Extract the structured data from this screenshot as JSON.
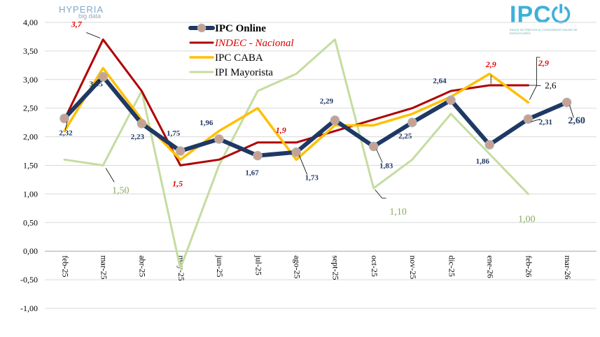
{
  "logos": {
    "left_name": "HYPERIA",
    "left_sub": "big data",
    "right_name": "IPC",
    "right_tagline": "ÍNDICE DE PRECIOS AL CONSUMIDOR ONLINE DE BUENOS AIRES"
  },
  "colors": {
    "ipc_online": "#1f3864",
    "ipc_online_marker": "#c9a08f",
    "indec": "#b00000",
    "ipc_caba": "#ffc000",
    "ipi": "#c5dca0",
    "grid": "#d9d9d9"
  },
  "chart_data": {
    "type": "line",
    "title": "",
    "xlabel": "",
    "ylabel": "",
    "ylim": [
      -1.0,
      4.0
    ],
    "yticks": [
      "4,00",
      "3,50",
      "3,00",
      "2,50",
      "2,00",
      "1,50",
      "1,00",
      "0,50",
      "0,00",
      "-0,50",
      "-1,00"
    ],
    "ytick_values": [
      4.0,
      3.5,
      3.0,
      2.5,
      2.0,
      1.5,
      1.0,
      0.5,
      0.0,
      -0.5,
      -1.0
    ],
    "categories": [
      "feb-25",
      "mar-25",
      "abr-25",
      "may-25",
      "jun-25",
      "jul-25",
      "ago-25",
      "sept-25",
      "oct-25",
      "nov-25",
      "dic-25",
      "ene-26",
      "feb-26",
      "mar-26"
    ],
    "legend": [
      "IPC Online",
      "INDEC - Nacional",
      "IPC CABA",
      "IPI Mayorista"
    ],
    "series": [
      {
        "name": "IPI Mayorista",
        "values": [
          1.6,
          1.5,
          2.8,
          -0.3,
          1.5,
          2.8,
          3.1,
          3.7,
          1.1,
          1.6,
          2.4,
          1.7,
          1.0,
          null
        ],
        "labels": [
          {
            "index": 1,
            "text": "1,50"
          },
          {
            "index": 8,
            "text": "1,10"
          },
          {
            "index": 12,
            "text": "1,00"
          }
        ]
      },
      {
        "name": "INDEC - Nacional",
        "values": [
          2.3,
          3.7,
          2.8,
          1.5,
          1.6,
          1.9,
          1.9,
          2.1,
          2.3,
          2.5,
          2.8,
          2.9,
          2.9,
          null
        ],
        "labels": [
          {
            "index": 1,
            "text": "3,7"
          },
          {
            "index": 3,
            "text": "1,5"
          },
          {
            "index": 6,
            "text": "1,9"
          },
          {
            "index": 11,
            "text": "2,9"
          },
          {
            "index": 12,
            "text": "2,9"
          }
        ]
      },
      {
        "name": "IPC CABA",
        "values": [
          2.1,
          3.2,
          2.3,
          1.6,
          2.1,
          2.5,
          1.6,
          2.2,
          2.2,
          2.4,
          2.7,
          3.1,
          2.6,
          null
        ],
        "labels": [
          {
            "index": 12,
            "text": "2,6"
          }
        ]
      },
      {
        "name": "IPC Online",
        "values": [
          2.32,
          3.05,
          2.23,
          1.75,
          1.96,
          1.67,
          1.73,
          2.29,
          1.83,
          2.25,
          2.64,
          1.86,
          2.31,
          2.6
        ],
        "labels": [
          {
            "index": 0,
            "text": "2,32"
          },
          {
            "index": 1,
            "text": "3,05"
          },
          {
            "index": 2,
            "text": "2,23"
          },
          {
            "index": 3,
            "text": "1,75"
          },
          {
            "index": 4,
            "text": "1,96"
          },
          {
            "index": 5,
            "text": "1,67"
          },
          {
            "index": 6,
            "text": "1,73"
          },
          {
            "index": 7,
            "text": "2,29"
          },
          {
            "index": 8,
            "text": "1,83"
          },
          {
            "index": 9,
            "text": "2,25"
          },
          {
            "index": 10,
            "text": "2,64"
          },
          {
            "index": 11,
            "text": "1,86"
          },
          {
            "index": 12,
            "text": "2,31"
          },
          {
            "index": 13,
            "text": "2,60"
          }
        ]
      }
    ]
  }
}
